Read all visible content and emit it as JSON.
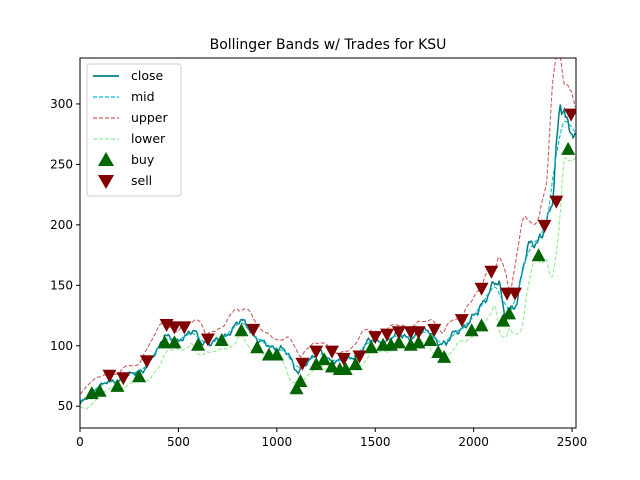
{
  "chart_data": {
    "type": "line",
    "title": "Bollinger Bands w/ Trades for KSU",
    "xlabel": "",
    "ylabel": "",
    "xlim": [
      0,
      2520
    ],
    "ylim": [
      32,
      338
    ],
    "xticks": [
      0,
      500,
      1000,
      1500,
      2000,
      2500
    ],
    "yticks": [
      50,
      100,
      150,
      200,
      250,
      300
    ],
    "grid": false,
    "legend_position": "top-left",
    "series": [
      {
        "name": "close",
        "style": "solid",
        "color": "#008080"
      },
      {
        "name": "mid",
        "style": "dashed",
        "color": "#00bcd4"
      },
      {
        "name": "upper",
        "style": "dashed",
        "color": "#cd5c5c"
      },
      {
        "name": "lower",
        "style": "dashed",
        "color": "#90ee90"
      }
    ],
    "markers": [
      {
        "name": "buy",
        "shape": "triangle-up",
        "color": "#006400"
      },
      {
        "name": "sell",
        "shape": "triangle-down",
        "color": "#800000"
      }
    ],
    "close_anchors": [
      [
        0,
        50
      ],
      [
        40,
        58
      ],
      [
        80,
        66
      ],
      [
        120,
        68
      ],
      [
        160,
        70
      ],
      [
        200,
        72
      ],
      [
        240,
        76
      ],
      [
        280,
        76
      ],
      [
        320,
        80
      ],
      [
        360,
        90
      ],
      [
        400,
        96
      ],
      [
        430,
        108
      ],
      [
        460,
        108
      ],
      [
        500,
        104
      ],
      [
        540,
        106
      ],
      [
        580,
        114
      ],
      [
        620,
        104
      ],
      [
        660,
        100
      ],
      [
        700,
        104
      ],
      [
        740,
        110
      ],
      [
        780,
        114
      ],
      [
        820,
        120
      ],
      [
        860,
        116
      ],
      [
        900,
        106
      ],
      [
        940,
        100
      ],
      [
        980,
        98
      ],
      [
        1020,
        100
      ],
      [
        1060,
        92
      ],
      [
        1090,
        80
      ],
      [
        1110,
        78
      ],
      [
        1140,
        86
      ],
      [
        1180,
        90
      ],
      [
        1220,
        94
      ],
      [
        1260,
        90
      ],
      [
        1300,
        88
      ],
      [
        1340,
        86
      ],
      [
        1380,
        90
      ],
      [
        1420,
        96
      ],
      [
        1460,
        102
      ],
      [
        1500,
        104
      ],
      [
        1540,
        104
      ],
      [
        1580,
        106
      ],
      [
        1620,
        108
      ],
      [
        1660,
        108
      ],
      [
        1700,
        108
      ],
      [
        1740,
        110
      ],
      [
        1780,
        112
      ],
      [
        1820,
        104
      ],
      [
        1860,
        100
      ],
      [
        1900,
        110
      ],
      [
        1940,
        116
      ],
      [
        1980,
        120
      ],
      [
        2020,
        126
      ],
      [
        2060,
        140
      ],
      [
        2100,
        154
      ],
      [
        2130,
        150
      ],
      [
        2160,
        120
      ],
      [
        2190,
        132
      ],
      [
        2220,
        138
      ],
      [
        2250,
        164
      ],
      [
        2280,
        180
      ],
      [
        2320,
        186
      ],
      [
        2360,
        200
      ],
      [
        2400,
        214
      ],
      [
        2420,
        260
      ],
      [
        2440,
        296
      ],
      [
        2460,
        300
      ],
      [
        2480,
        286
      ],
      [
        2500,
        280
      ],
      [
        2515,
        276
      ]
    ],
    "buy_points": [
      [
        60,
        60
      ],
      [
        100,
        62
      ],
      [
        190,
        66
      ],
      [
        300,
        74
      ],
      [
        430,
        102
      ],
      [
        480,
        102
      ],
      [
        600,
        100
      ],
      [
        720,
        104
      ],
      [
        820,
        112
      ],
      [
        900,
        98
      ],
      [
        960,
        92
      ],
      [
        1000,
        92
      ],
      [
        1100,
        64
      ],
      [
        1120,
        70
      ],
      [
        1200,
        84
      ],
      [
        1240,
        88
      ],
      [
        1280,
        82
      ],
      [
        1320,
        80
      ],
      [
        1350,
        80
      ],
      [
        1400,
        84
      ],
      [
        1480,
        98
      ],
      [
        1540,
        100
      ],
      [
        1580,
        100
      ],
      [
        1620,
        102
      ],
      [
        1680,
        100
      ],
      [
        1720,
        102
      ],
      [
        1780,
        104
      ],
      [
        1820,
        94
      ],
      [
        1850,
        90
      ],
      [
        1990,
        112
      ],
      [
        2040,
        116
      ],
      [
        2150,
        120
      ],
      [
        2180,
        126
      ],
      [
        2330,
        174
      ],
      [
        2480,
        262
      ]
    ],
    "sell_points": [
      [
        150,
        76
      ],
      [
        220,
        74
      ],
      [
        340,
        88
      ],
      [
        440,
        118
      ],
      [
        480,
        116
      ],
      [
        530,
        116
      ],
      [
        650,
        106
      ],
      [
        880,
        114
      ],
      [
        1130,
        86
      ],
      [
        1200,
        96
      ],
      [
        1280,
        96
      ],
      [
        1340,
        90
      ],
      [
        1420,
        92
      ],
      [
        1500,
        108
      ],
      [
        1560,
        110
      ],
      [
        1620,
        112
      ],
      [
        1680,
        112
      ],
      [
        1720,
        112
      ],
      [
        1800,
        114
      ],
      [
        1940,
        122
      ],
      [
        2040,
        148
      ],
      [
        2090,
        162
      ],
      [
        2170,
        144
      ],
      [
        2210,
        144
      ],
      [
        2360,
        200
      ],
      [
        2420,
        220
      ],
      [
        2495,
        292
      ]
    ]
  }
}
